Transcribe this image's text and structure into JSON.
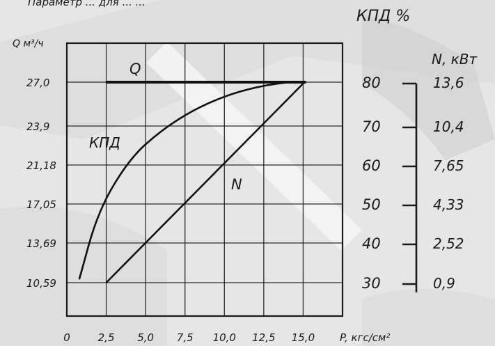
{
  "chart_data": {
    "type": "line",
    "header_text": "Параметр ... для ... ...",
    "x_axis": {
      "label": "P, кгс/см²",
      "ticks": [
        "0",
        "2,5",
        "5,0",
        "7,5",
        "10,0",
        "12,5",
        "15,0"
      ],
      "range": [
        0,
        17.5
      ]
    },
    "y_axes": {
      "q": {
        "label": "Q м³/ч",
        "ticks": [
          "27,0",
          "23,9",
          "21,18",
          "17,05",
          "13,69",
          "10,59"
        ]
      },
      "efficiency": {
        "label": "КПД %",
        "ticks": [
          "80",
          "70",
          "60",
          "50",
          "40",
          "30"
        ]
      },
      "power": {
        "label": "N, кВт",
        "ticks": [
          "13,6",
          "10,4",
          "7,65",
          "4,33",
          "2,52",
          "0,9"
        ]
      }
    },
    "series": [
      {
        "name": "Q",
        "points": [
          [
            2.5,
            27.0
          ],
          [
            15.0,
            27.0
          ]
        ]
      },
      {
        "name": "КПД",
        "points": [
          [
            0.8,
            31
          ],
          [
            2,
            48
          ],
          [
            4,
            61
          ],
          [
            6,
            68
          ],
          [
            8,
            73
          ],
          [
            10,
            76.5
          ],
          [
            12,
            78.8
          ],
          [
            14,
            80
          ],
          [
            15,
            80
          ]
        ]
      },
      {
        "name": "N",
        "points": [
          [
            2.5,
            0.9
          ],
          [
            15.0,
            13.6
          ]
        ]
      }
    ],
    "grid": true
  }
}
